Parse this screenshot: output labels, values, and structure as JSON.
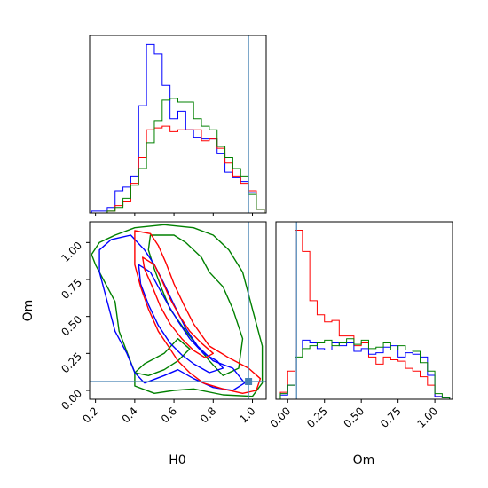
{
  "chart_data": {
    "type": "corner",
    "parameters": [
      "H0",
      "Om"
    ],
    "truths": {
      "H0": 0.98,
      "Om": 0.06
    },
    "truth_color": "#4682b4",
    "series_colors": [
      "#0000ff",
      "#ff0000",
      "#008000"
    ],
    "panels": {
      "h0_hist": {
        "xlim": [
          0.17,
          1.07
        ],
        "bins": [
          0.18,
          0.22,
          0.26,
          0.3,
          0.34,
          0.38,
          0.42,
          0.46,
          0.5,
          0.54,
          0.58,
          0.62,
          0.66,
          0.7,
          0.74,
          0.78,
          0.82,
          0.86,
          0.9,
          0.94,
          0.98,
          1.02,
          1.06
        ],
        "series": [
          {
            "color": "#0000ff",
            "values": [
              1,
              1,
              3,
              12,
              14,
              20,
              58,
              91,
              86,
              69,
              51,
              55,
              45,
              41,
              40,
              40,
              32,
              22,
              19,
              17,
              11,
              2
            ]
          },
          {
            "color": "#ff0000",
            "values": [
              0,
              0,
              1,
              4,
              6,
              16,
              30,
              45,
              46,
              47,
              44,
              45,
              45,
              45,
              39,
              40,
              35,
              27,
              20,
              16,
              12,
              2
            ]
          },
          {
            "color": "#008000",
            "values": [
              0,
              0,
              1,
              3,
              8,
              15,
              24,
              38,
              50,
              61,
              62,
              60,
              60,
              51,
              47,
              45,
              36,
              30,
              24,
              20,
              10,
              2
            ]
          }
        ]
      },
      "om_hist": {
        "xlim": [
          -0.08,
          1.12
        ],
        "bins": [
          -0.05,
          0.0,
          0.05,
          0.1,
          0.15,
          0.2,
          0.25,
          0.3,
          0.35,
          0.4,
          0.45,
          0.5,
          0.55,
          0.6,
          0.65,
          0.7,
          0.75,
          0.8,
          0.85,
          0.9,
          0.95,
          1.0,
          1.05,
          1.1
        ],
        "ticks": [
          "0.00",
          "0.25",
          "0.50",
          "0.75",
          "1.00"
        ],
        "series": [
          {
            "color": "#ff0000",
            "values": [
              5,
              20,
              120,
              105,
              70,
              60,
              55,
              56,
              45,
              45,
              38,
              40,
              30,
              25,
              30,
              28,
              27,
              22,
              20,
              16,
              10,
              2,
              1
            ]
          },
          {
            "color": "#0000ff",
            "values": [
              3,
              10,
              35,
              42,
              40,
              36,
              35,
              40,
              38,
              40,
              34,
              36,
              32,
              33,
              37,
              38,
              30,
              33,
              32,
              30,
              17,
              2,
              1
            ]
          },
          {
            "color": "#008000",
            "values": [
              4,
              10,
              30,
              36,
              38,
              40,
              42,
              38,
              40,
              43,
              39,
              42,
              36,
              37,
              40,
              35,
              38,
              35,
              34,
              26,
              20,
              4,
              1
            ]
          }
        ]
      },
      "joint": {
        "xlim": [
          0.17,
          1.07
        ],
        "ylim": [
          -0.06,
          1.14
        ],
        "xticks": [
          "0.2",
          "0.4",
          "0.6",
          "0.8",
          "1.0"
        ],
        "yticks": [
          "0.00",
          "0.25",
          "0.50",
          "0.75",
          "1.00"
        ],
        "contours": [
          {
            "color": "#008000",
            "points": [
              [
                0.18,
                0.92
              ],
              [
                0.22,
                1.0
              ],
              [
                0.3,
                1.05
              ],
              [
                0.4,
                1.1
              ],
              [
                0.55,
                1.12
              ],
              [
                0.7,
                1.1
              ],
              [
                0.8,
                1.05
              ],
              [
                0.88,
                0.95
              ],
              [
                0.95,
                0.8
              ],
              [
                1.0,
                0.55
              ],
              [
                1.05,
                0.3
              ],
              [
                1.05,
                0.05
              ],
              [
                1.0,
                -0.04
              ],
              [
                0.85,
                -0.03
              ],
              [
                0.7,
                0.01
              ],
              [
                0.6,
                0.0
              ],
              [
                0.5,
                -0.02
              ],
              [
                0.4,
                0.03
              ],
              [
                0.4,
                0.12
              ],
              [
                0.32,
                0.4
              ],
              [
                0.3,
                0.6
              ],
              [
                0.2,
                0.85
              ],
              [
                0.18,
                0.92
              ]
            ]
          },
          {
            "color": "#008000",
            "points": [
              [
                0.48,
                1.05
              ],
              [
                0.6,
                1.05
              ],
              [
                0.66,
                1.0
              ],
              [
                0.74,
                0.9
              ],
              [
                0.78,
                0.8
              ],
              [
                0.85,
                0.7
              ],
              [
                0.9,
                0.55
              ],
              [
                0.95,
                0.35
              ],
              [
                0.93,
                0.15
              ],
              [
                0.85,
                0.1
              ],
              [
                0.78,
                0.2
              ],
              [
                0.72,
                0.3
              ],
              [
                0.65,
                0.42
              ],
              [
                0.58,
                0.55
              ],
              [
                0.54,
                0.68
              ],
              [
                0.5,
                0.82
              ],
              [
                0.47,
                0.95
              ],
              [
                0.48,
                1.05
              ]
            ]
          },
          {
            "color": "#008000",
            "points": [
              [
                0.4,
                0.12
              ],
              [
                0.45,
                0.18
              ],
              [
                0.55,
                0.25
              ],
              [
                0.62,
                0.35
              ],
              [
                0.68,
                0.28
              ],
              [
                0.62,
                0.2
              ],
              [
                0.55,
                0.14
              ],
              [
                0.47,
                0.1
              ],
              [
                0.4,
                0.12
              ]
            ]
          },
          {
            "color": "#0000ff",
            "points": [
              [
                0.22,
                0.95
              ],
              [
                0.28,
                1.02
              ],
              [
                0.38,
                1.05
              ],
              [
                0.45,
                0.95
              ],
              [
                0.5,
                0.85
              ],
              [
                0.55,
                0.72
              ],
              [
                0.6,
                0.58
              ],
              [
                0.66,
                0.42
              ],
              [
                0.72,
                0.3
              ],
              [
                0.8,
                0.2
              ],
              [
                0.9,
                0.15
              ],
              [
                0.96,
                0.05
              ],
              [
                0.9,
                0.0
              ],
              [
                0.8,
                0.02
              ],
              [
                0.7,
                0.08
              ],
              [
                0.62,
                0.14
              ],
              [
                0.55,
                0.1
              ],
              [
                0.45,
                0.05
              ],
              [
                0.4,
                0.12
              ],
              [
                0.36,
                0.25
              ],
              [
                0.3,
                0.4
              ],
              [
                0.26,
                0.6
              ],
              [
                0.22,
                0.8
              ],
              [
                0.22,
                0.95
              ]
            ]
          },
          {
            "color": "#0000ff",
            "points": [
              [
                0.42,
                0.85
              ],
              [
                0.48,
                0.8
              ],
              [
                0.52,
                0.7
              ],
              [
                0.57,
                0.58
              ],
              [
                0.62,
                0.47
              ],
              [
                0.68,
                0.35
              ],
              [
                0.75,
                0.25
              ],
              [
                0.82,
                0.2
              ],
              [
                0.85,
                0.15
              ],
              [
                0.78,
                0.12
              ],
              [
                0.7,
                0.18
              ],
              [
                0.64,
                0.24
              ],
              [
                0.58,
                0.32
              ],
              [
                0.52,
                0.44
              ],
              [
                0.47,
                0.58
              ],
              [
                0.43,
                0.72
              ],
              [
                0.42,
                0.85
              ]
            ]
          },
          {
            "color": "#ff0000",
            "points": [
              [
                0.4,
                1.08
              ],
              [
                0.48,
                1.06
              ],
              [
                0.52,
                0.98
              ],
              [
                0.56,
                0.86
              ],
              [
                0.6,
                0.72
              ],
              [
                0.65,
                0.58
              ],
              [
                0.7,
                0.45
              ],
              [
                0.78,
                0.3
              ],
              [
                0.88,
                0.22
              ],
              [
                0.98,
                0.15
              ],
              [
                1.04,
                0.08
              ],
              [
                1.02,
                0.0
              ],
              [
                0.95,
                -0.02
              ],
              [
                0.85,
                0.01
              ],
              [
                0.75,
                0.05
              ],
              [
                0.68,
                0.12
              ],
              [
                0.62,
                0.2
              ],
              [
                0.58,
                0.28
              ],
              [
                0.52,
                0.4
              ],
              [
                0.47,
                0.55
              ],
              [
                0.43,
                0.7
              ],
              [
                0.4,
                0.85
              ],
              [
                0.4,
                1.08
              ]
            ]
          },
          {
            "color": "#ff0000",
            "points": [
              [
                0.44,
                0.9
              ],
              [
                0.5,
                0.85
              ],
              [
                0.54,
                0.74
              ],
              [
                0.58,
                0.62
              ],
              [
                0.63,
                0.5
              ],
              [
                0.68,
                0.4
              ],
              [
                0.74,
                0.32
              ],
              [
                0.8,
                0.25
              ],
              [
                0.76,
                0.22
              ],
              [
                0.7,
                0.27
              ],
              [
                0.64,
                0.35
              ],
              [
                0.58,
                0.45
              ],
              [
                0.53,
                0.57
              ],
              [
                0.49,
                0.7
              ],
              [
                0.45,
                0.82
              ],
              [
                0.44,
                0.9
              ]
            ]
          }
        ]
      }
    }
  }
}
